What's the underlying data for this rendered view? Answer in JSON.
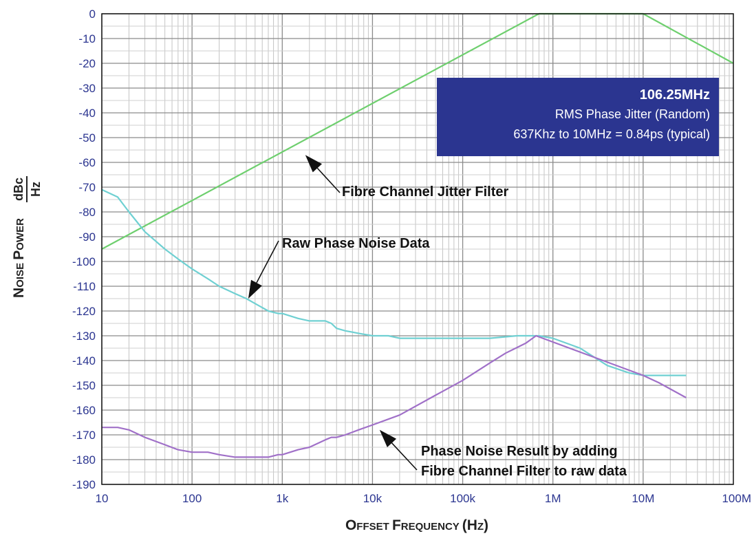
{
  "chart_data": {
    "type": "line",
    "x_scale": "log",
    "xlim": [
      10,
      100000000
    ],
    "ylim": [
      -190,
      0
    ],
    "grid": true,
    "y_ticks": [
      0,
      -10,
      -20,
      -30,
      -40,
      -50,
      -60,
      -70,
      -80,
      -90,
      -100,
      -110,
      -120,
      -130,
      -140,
      -150,
      -160,
      -170,
      -180,
      -190
    ],
    "x_ticks": [
      {
        "value": 10,
        "label": "10"
      },
      {
        "value": 100,
        "label": "100"
      },
      {
        "value": 1000,
        "label": "1k"
      },
      {
        "value": 10000,
        "label": "10k"
      },
      {
        "value": 100000,
        "label": "100k"
      },
      {
        "value": 1000000,
        "label": "1M"
      },
      {
        "value": 10000000,
        "label": "10M"
      },
      {
        "value": 100000000,
        "label": "100M"
      }
    ],
    "xlabel_parts": [
      {
        "text": "O",
        "size": "big"
      },
      {
        "text": "FFSET ",
        "size": "small"
      },
      {
        "text": "F",
        "size": "big"
      },
      {
        "text": "REQUENCY ",
        "size": "small"
      },
      {
        "text": "(H",
        "size": "big"
      },
      {
        "text": "Z",
        "size": "small"
      },
      {
        "text": ")",
        "size": "big"
      }
    ],
    "ylabel_parts": [
      {
        "text": "N",
        "size": "big"
      },
      {
        "text": "OISE ",
        "size": "small"
      },
      {
        "text": "P",
        "size": "big"
      },
      {
        "text": "OWER",
        "size": "small"
      }
    ],
    "ylabel_unit": {
      "numerator": "dBc",
      "denominator": "Hz"
    },
    "series": [
      {
        "color": "#6ecf6e",
        "x": [
          10,
          700000,
          10000000,
          100000000
        ],
        "y": [
          -95,
          0,
          0,
          -20
        ]
      },
      {
        "color": "#6fd0d2",
        "x": [
          10,
          15,
          20,
          30,
          50,
          70,
          100,
          150,
          200,
          300,
          400,
          500,
          700,
          900,
          1000,
          1500,
          2000,
          2500,
          3000,
          3500,
          4000,
          5000,
          7000,
          10000,
          15000,
          20000,
          50000,
          100000,
          200000,
          400000,
          700000,
          1000000,
          2000000,
          4000000,
          7000000,
          10000000,
          15000000,
          30000000
        ],
        "y": [
          -71,
          -74,
          -80,
          -88,
          -95,
          -99,
          -103,
          -107,
          -110,
          -113,
          -115,
          -117,
          -120,
          -121,
          -121,
          -123,
          -124,
          -124,
          -124,
          -125,
          -127,
          -128,
          -129,
          -130,
          -130,
          -131,
          -131,
          -131,
          -131,
          -130,
          -130,
          -131,
          -135,
          -142,
          -145,
          -146,
          -146,
          -146
        ]
      },
      {
        "color": "#a070c8",
        "x": [
          10,
          15,
          20,
          30,
          50,
          70,
          100,
          150,
          200,
          300,
          500,
          700,
          900,
          1000,
          1500,
          2000,
          3000,
          3500,
          4000,
          5000,
          7000,
          10000,
          20000,
          50000,
          100000,
          200000,
          300000,
          500000,
          650000,
          10000000,
          15000000,
          30000000
        ],
        "y": [
          -167,
          -167,
          -168,
          -171,
          -174,
          -176,
          -177,
          -177,
          -178,
          -179,
          -179,
          -179,
          -178,
          -178,
          -176,
          -175,
          -172,
          -171,
          -171,
          -170,
          -168,
          -166,
          -162,
          -154,
          -148,
          -141,
          -137,
          -133,
          -130,
          -146,
          -149,
          -155
        ]
      }
    ],
    "annotations": [
      {
        "text": "Fibre Channel Jitter Filter",
        "arrow_to": {
          "x": 1800,
          "y": -57
        }
      },
      {
        "text": "Raw Phase Noise Data",
        "arrow_to": {
          "x": 420,
          "y": -115
        }
      },
      {
        "lines": [
          "Phase Noise Result by adding",
          "Fibre Channel Filter to raw data"
        ],
        "arrow_to": {
          "x": 12000,
          "y": -168
        }
      }
    ],
    "infobox": {
      "title": "106.25MHz",
      "lines": [
        "RMS Phase Jitter  (Random)",
        "637Khz to 10MHz = 0.84ps (typical)"
      ],
      "background": "#2b3590"
    }
  }
}
